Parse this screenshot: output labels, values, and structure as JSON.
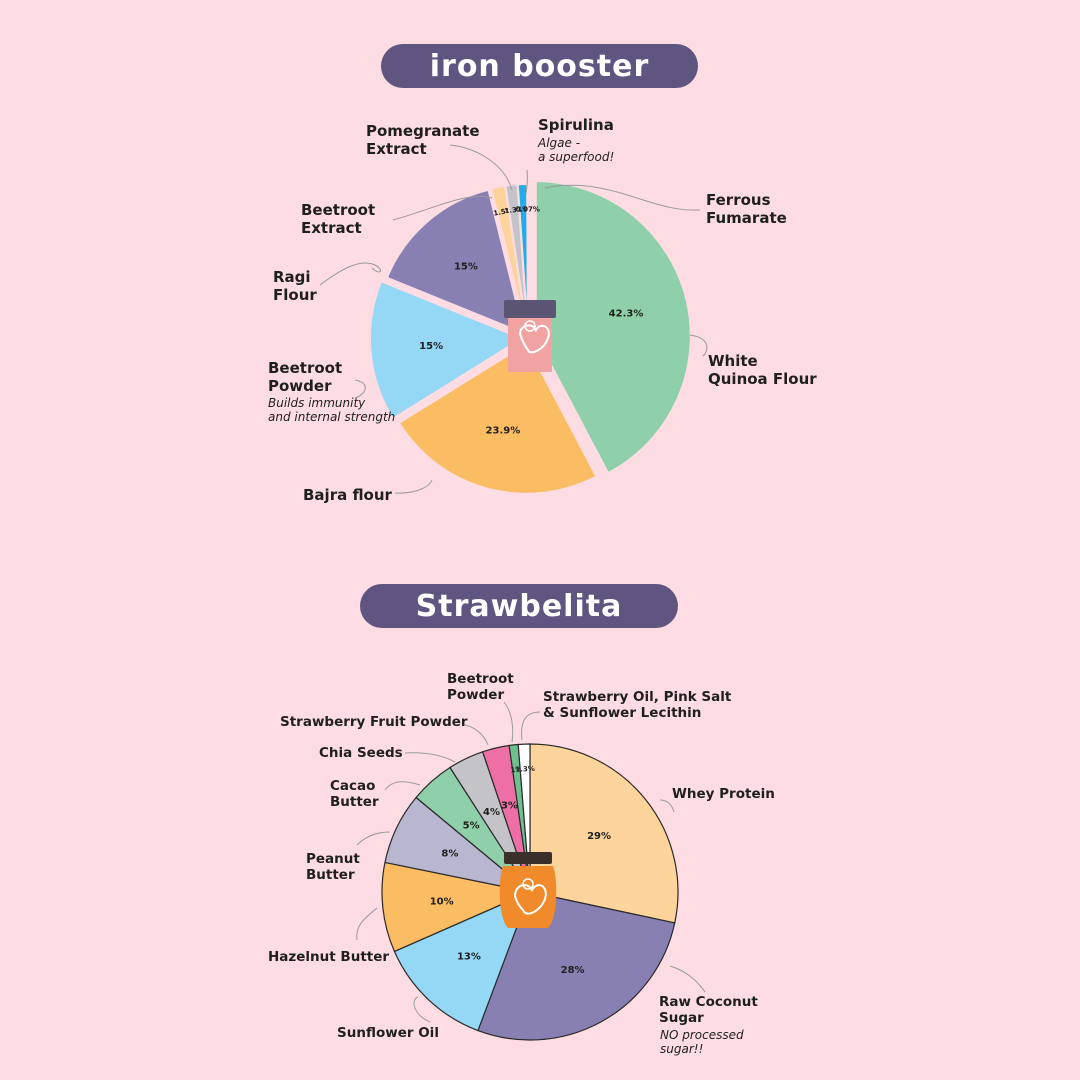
{
  "titles": {
    "first": "iron booster",
    "second": "Strawbelita"
  },
  "chart_data": [
    {
      "type": "pie",
      "title": "iron booster",
      "slices": [
        {
          "label": "White Quinoa Flour",
          "value": 42.3,
          "label_text": "42.3%",
          "color": "#8fcfa9"
        },
        {
          "label": "Bajra flour",
          "value": 23.9,
          "label_text": "23.9%",
          "color": "#fbbd64"
        },
        {
          "label": "Beetroot Powder",
          "value": 15,
          "label_text": "15%",
          "color": "#94d8f6"
        },
        {
          "label": "Ragi Flour",
          "value": 15,
          "label_text": "15%",
          "color": "#8880b3"
        },
        {
          "label": "Beetroot Extract",
          "value": 1.5,
          "label_text": "1.5%",
          "color": "#fdd49c"
        },
        {
          "label": "Pomegranate Extract",
          "value": 1.3,
          "label_text": "1.3%",
          "color": "#c3c3c8"
        },
        {
          "label": "Spirulina",
          "value": 1,
          "label_text": "1%",
          "color": "#1faee8"
        },
        {
          "label": "Ferrous Fumarate",
          "value": 0.07,
          "label_text": "0.07%",
          "color": "#b9b6d0"
        }
      ],
      "annotations": {
        "white_quinoa": "White\nQuinoa Flour",
        "bajra": "Bajra flour",
        "beetroot_powder": "Beetroot\nPowder",
        "beetroot_powder_note": "Builds immunity\nand internal strength",
        "ragi": "Ragi\nFlour",
        "beetroot_extract": "Beetroot\nExtract",
        "pomegranate": "Pomegranate\nExtract",
        "spirulina": "Spirulina",
        "spirulina_note": "Algae -\na superfood!",
        "ferrous": "Ferrous\nFumarate"
      }
    },
    {
      "type": "pie",
      "title": "Strawbelita",
      "slices": [
        {
          "label": "Whey Protein",
          "value": 29,
          "label_text": "29%",
          "color": "#fdd49c"
        },
        {
          "label": "Raw Coconut Sugar",
          "value": 28,
          "label_text": "28%",
          "color": "#8880b3"
        },
        {
          "label": "Sunflower Oil",
          "value": 13,
          "label_text": "13%",
          "color": "#94d8f6"
        },
        {
          "label": "Hazelnut Butter",
          "value": 10,
          "label_text": "10%",
          "color": "#fbbd64"
        },
        {
          "label": "Peanut Butter",
          "value": 8,
          "label_text": "8%",
          "color": "#b9b6d0"
        },
        {
          "label": "Cacao Butter",
          "value": 5,
          "label_text": "5%",
          "color": "#8fcfa9"
        },
        {
          "label": "Chia Seeds",
          "value": 4,
          "label_text": "4%",
          "color": "#c3c3c8"
        },
        {
          "label": "Strawberry Fruit Powder",
          "value": 3,
          "label_text": "3%",
          "color": "#ee6fa5"
        },
        {
          "label": "Beetroot Powder",
          "value": 1,
          "label_text": "1%",
          "color": "#6fbf8f"
        },
        {
          "label": "Strawberry Oil, Pink Salt & Sunflower Lecithin",
          "value": 1.3,
          "label_text": "1.3%",
          "color": "#ffffff"
        }
      ],
      "annotations": {
        "whey": "Whey Protein",
        "coconut": "Raw Coconut\nSugar",
        "coconut_note": "NO processed\nsugar!!",
        "sunflower_oil": "Sunflower Oil",
        "hazelnut": "Hazelnut Butter",
        "peanut": "Peanut\nButter",
        "cacao": "Cacao\nButter",
        "chia": "Chia Seeds",
        "strawberry_powder": "Strawberry Fruit Powder",
        "beetroot_powder": "Beetroot\nPowder",
        "oil_salt": "Strawberry Oil, Pink Salt\n& Sunflower Lecithin"
      }
    }
  ]
}
